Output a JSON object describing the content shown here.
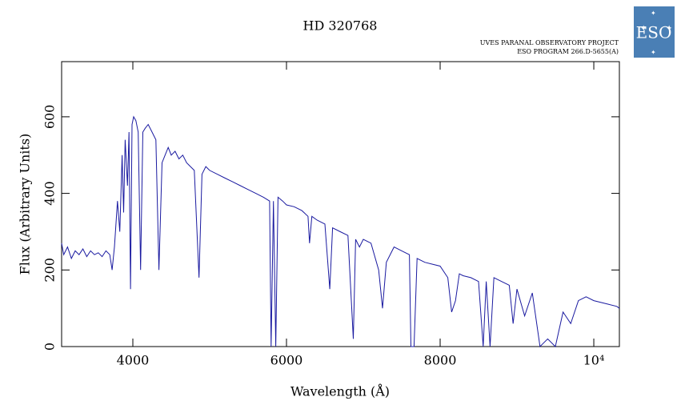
{
  "chart_data": {
    "type": "line",
    "title": "HD 320768",
    "notes": [
      "UVES PARANAL OBSERVATORY PROJECT",
      "ESO PROGRAM 266.D-5655(A)"
    ],
    "logo": "ESO",
    "x_label": "Wavelength (Å)",
    "y_label": "Flux (Arbitrary Units)",
    "xlim": [
      3073,
      10333
    ],
    "ylim": [
      0,
      744
    ],
    "xticks": [
      4000,
      6000,
      8000,
      {
        "value": 10000,
        "label": "10⁴"
      }
    ],
    "yticks": [
      0,
      200,
      400,
      600
    ],
    "color": "#1a1aa0",
    "x": [
      3073,
      3100,
      3150,
      3200,
      3250,
      3300,
      3350,
      3400,
      3450,
      3500,
      3550,
      3600,
      3650,
      3700,
      3730,
      3760,
      3800,
      3830,
      3860,
      3880,
      3900,
      3930,
      3950,
      3970,
      3990,
      4010,
      4040,
      4070,
      4101,
      4130,
      4160,
      4200,
      4250,
      4300,
      4340,
      4380,
      4420,
      4460,
      4500,
      4550,
      4600,
      4650,
      4700,
      4750,
      4800,
      4861,
      4900,
      4950,
      5000,
      5100,
      5200,
      5300,
      5400,
      5500,
      5600,
      5700,
      5780,
      5800,
      5830,
      5860,
      5890,
      5950,
      6000,
      6100,
      6200,
      6280,
      6300,
      6330,
      6400,
      6500,
      6563,
      6600,
      6700,
      6800,
      6870,
      6900,
      6950,
      7000,
      7100,
      7200,
      7250,
      7300,
      7400,
      7500,
      7600,
      7620,
      7660,
      7700,
      7800,
      7900,
      8000,
      8100,
      8150,
      8200,
      8250,
      8300,
      8400,
      8500,
      8560,
      8600,
      8650,
      8700,
      8800,
      8900,
      8950,
      9000,
      9100,
      9200,
      9300,
      9400,
      9500,
      9600,
      9700,
      9800,
      9900,
      10000,
      10100,
      10200,
      10300,
      10333
    ],
    "values": [
      270,
      240,
      260,
      230,
      250,
      240,
      255,
      235,
      250,
      240,
      245,
      235,
      250,
      240,
      200,
      260,
      380,
      300,
      500,
      350,
      540,
      420,
      560,
      150,
      580,
      600,
      590,
      560,
      200,
      560,
      570,
      580,
      560,
      540,
      200,
      480,
      500,
      520,
      500,
      510,
      490,
      500,
      480,
      470,
      460,
      180,
      450,
      470,
      460,
      450,
      440,
      430,
      420,
      410,
      400,
      390,
      380,
      0,
      380,
      0,
      390,
      380,
      370,
      365,
      355,
      340,
      270,
      340,
      330,
      320,
      150,
      310,
      300,
      290,
      20,
      280,
      260,
      280,
      270,
      200,
      100,
      220,
      260,
      250,
      240,
      0,
      0,
      230,
      220,
      215,
      210,
      180,
      90,
      120,
      190,
      185,
      180,
      170,
      0,
      170,
      0,
      180,
      170,
      160,
      60,
      150,
      80,
      140,
      0,
      20,
      0,
      90,
      60,
      120,
      130,
      120,
      115,
      110,
      105,
      100
    ]
  }
}
